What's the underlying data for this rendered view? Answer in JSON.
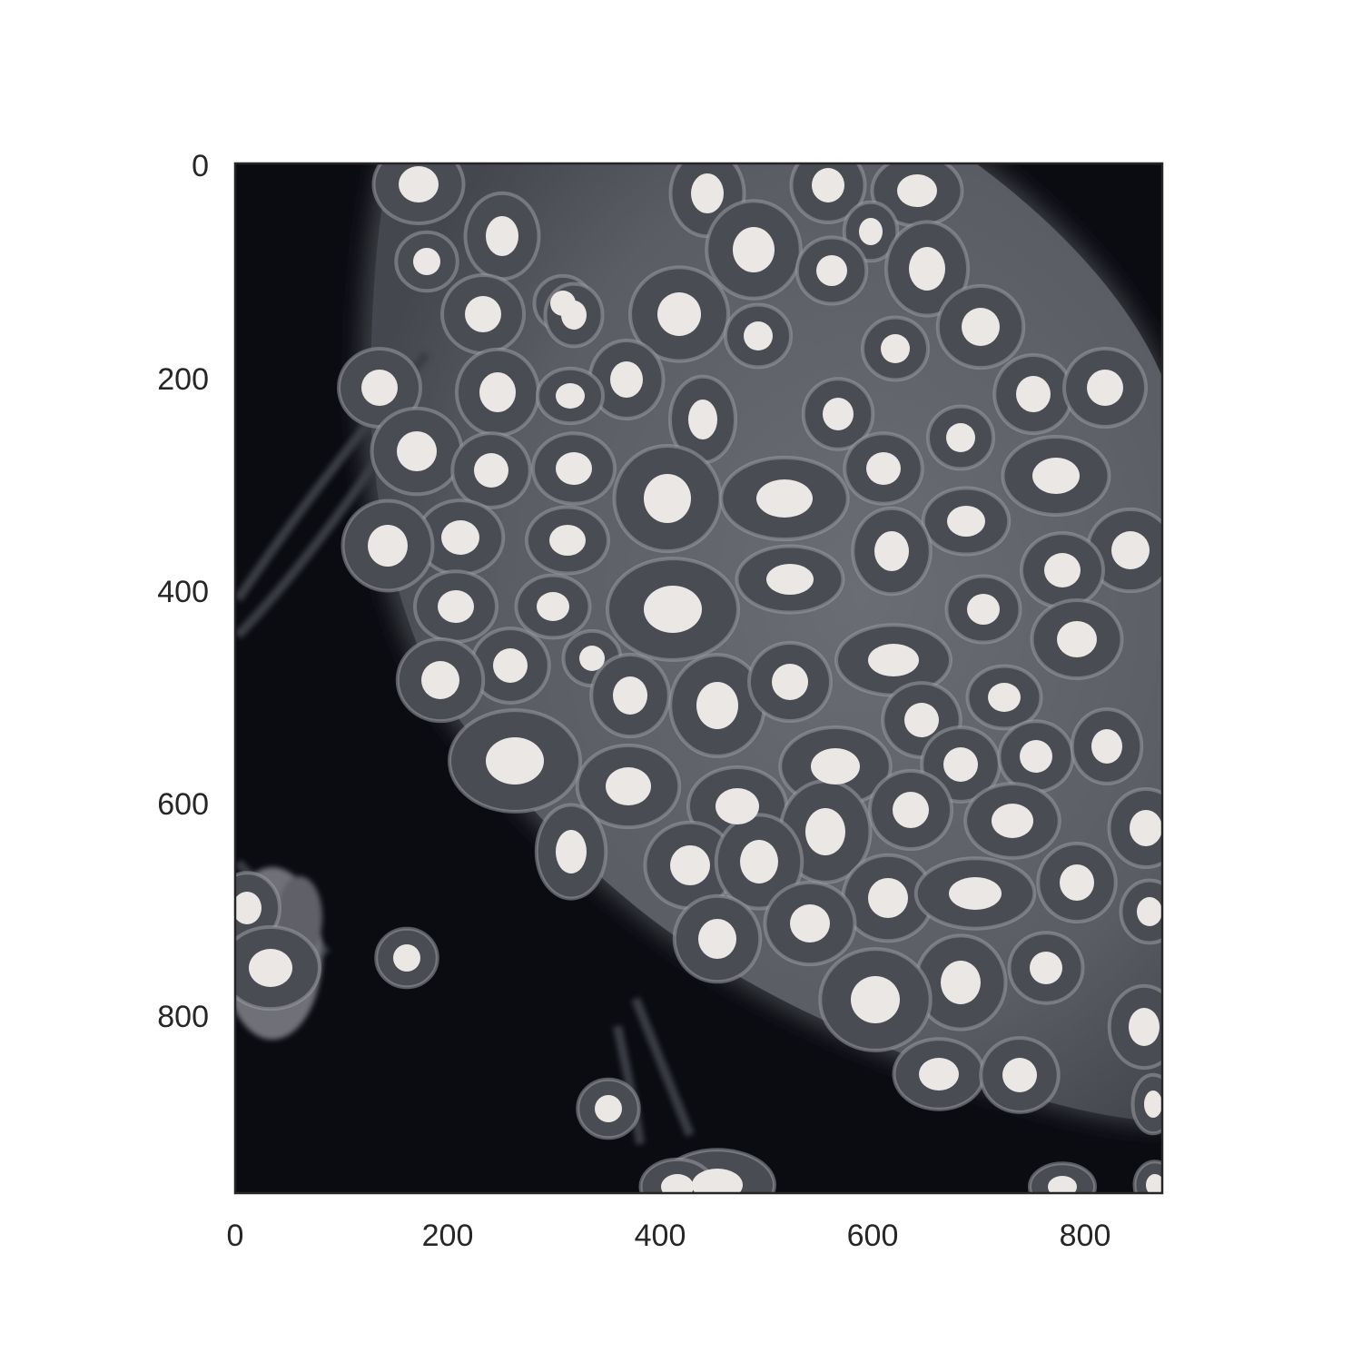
{
  "figure": {
    "type": "image",
    "subject": "fluorescence microscopy of a cell sheet with bright nuclei",
    "colors": {
      "background": "#0b0c12",
      "tissue": "#5d6067",
      "cell_border": "#9a9da3",
      "nucleus": "#ebe7e4",
      "axes_frame": "#262626",
      "tick_text": "#262626"
    }
  },
  "chart_data": {
    "type": "image",
    "title": "",
    "xlabel": "",
    "ylabel": "",
    "xlim": [
      0,
      872
    ],
    "ylim": [
      968,
      0
    ],
    "xticks": [
      "0",
      "200",
      "400",
      "600",
      "800"
    ],
    "yticks": [
      "0",
      "200",
      "400",
      "600",
      "800"
    ],
    "grid": false,
    "legend": false
  }
}
